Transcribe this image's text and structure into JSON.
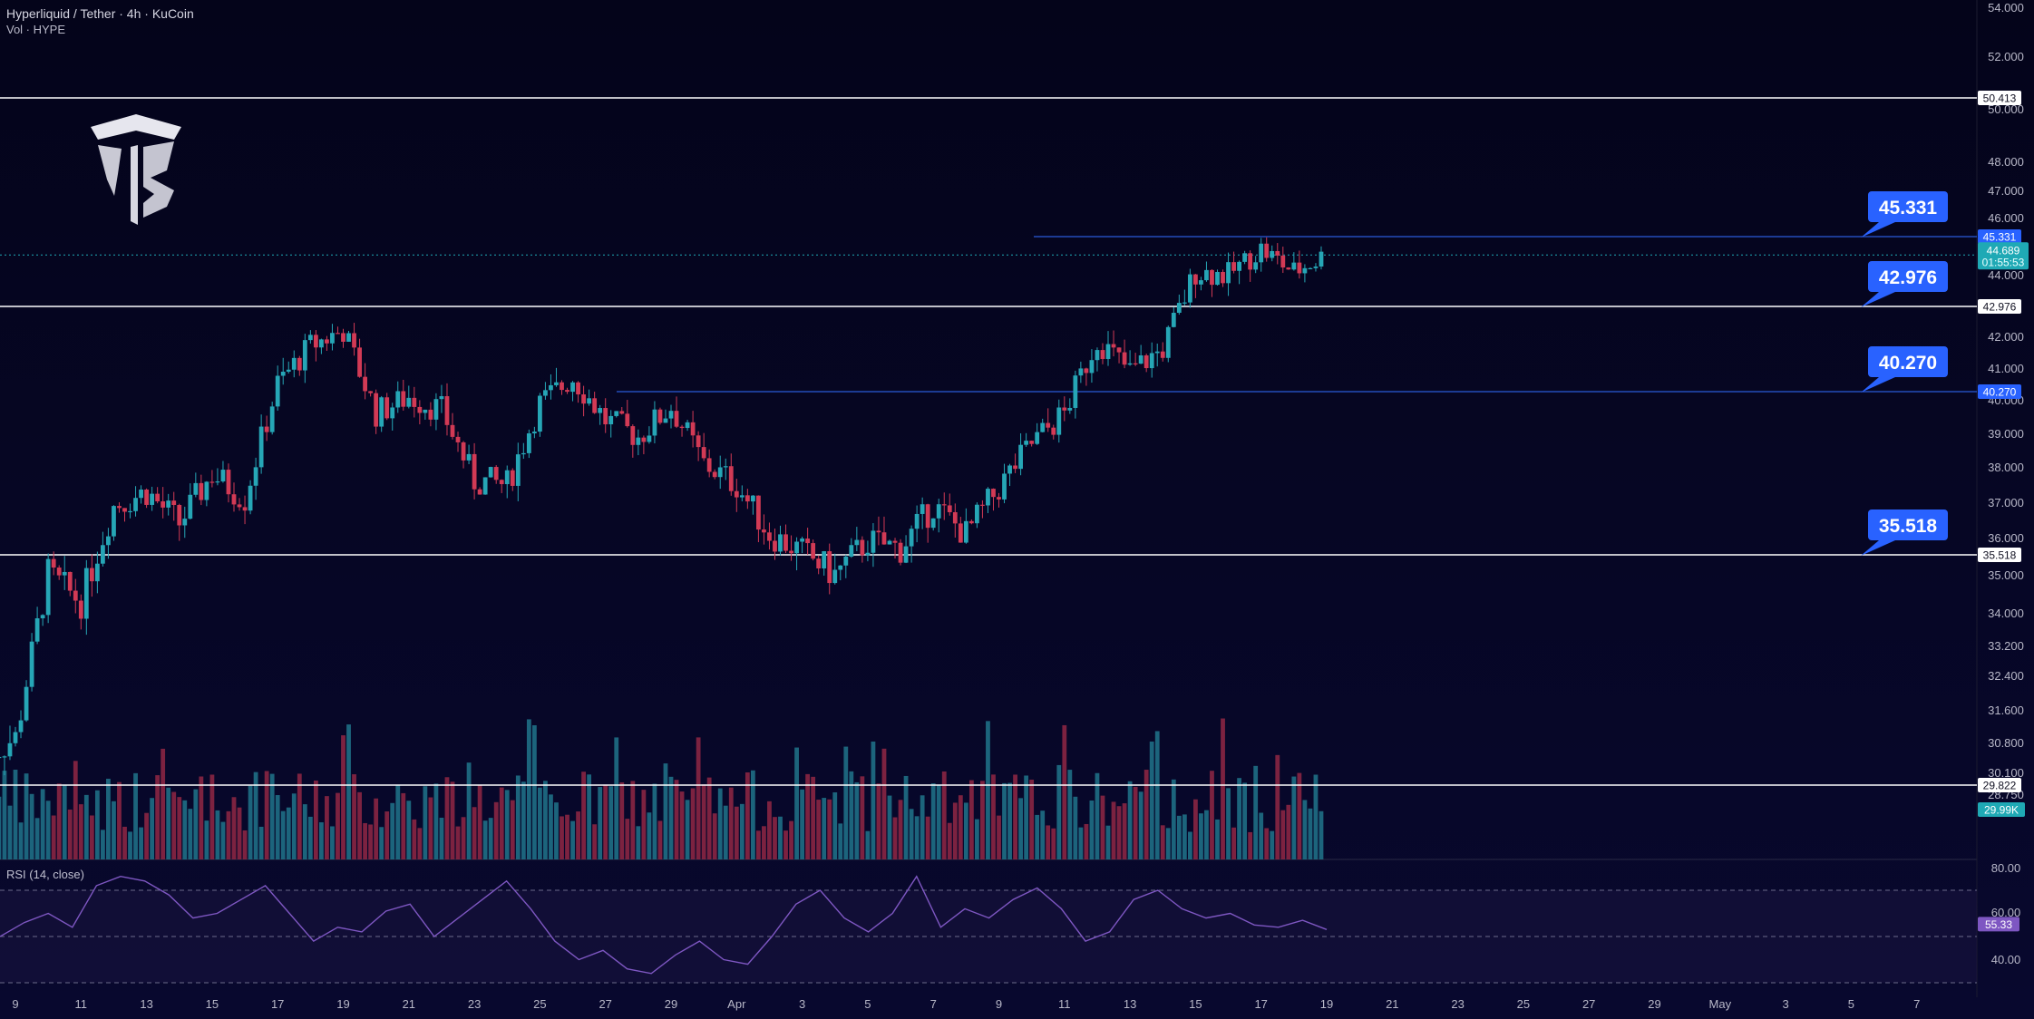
{
  "header": {
    "symbol": "Hyperliquid / Tether · 4h · KuCoin",
    "volume_label": "Vol · HYPE"
  },
  "colors": {
    "background": "#05051a",
    "up": "#26a6b6",
    "down": "#d23a55",
    "level_white": "#ffffff",
    "level_blue": "#2b5bd9",
    "callout_bg": "#2962ff",
    "last_price_bg": "#1fa9b5",
    "rsi_line": "#7e57c2"
  },
  "chart_data": {
    "type": "candlestick",
    "y_axis_ticks": [
      "54.000",
      "52.000",
      "50.000",
      "48.000",
      "47.000",
      "46.000",
      "44.000",
      "42.000",
      "41.000",
      "40.000",
      "39.000",
      "38.000",
      "37.000",
      "36.000",
      "35.000",
      "34.000",
      "33.200",
      "32.400",
      "31.600",
      "30.800",
      "30.100",
      "28.750"
    ],
    "x_axis_ticks": [
      "9",
      "11",
      "13",
      "15",
      "17",
      "19",
      "21",
      "23",
      "25",
      "27",
      "29",
      "Apr",
      "3",
      "5",
      "7",
      "9",
      "11",
      "13",
      "15",
      "17",
      "19",
      "21",
      "23",
      "25",
      "27",
      "29",
      "May",
      "3",
      "5",
      "7"
    ],
    "levels": [
      {
        "value": 50.413,
        "label": "50.413",
        "style": "white"
      },
      {
        "value": 45.331,
        "label": "45.331",
        "style": "blue",
        "callout": "45.331"
      },
      {
        "value": 42.976,
        "label": "42.976",
        "style": "white",
        "callout": "42.976"
      },
      {
        "value": 40.27,
        "label": "40.270",
        "style": "blue",
        "callout": "40.270"
      },
      {
        "value": 35.518,
        "label": "35.518",
        "style": "white",
        "callout": "35.518"
      },
      {
        "value": 29.822,
        "label": "29.822",
        "style": "white"
      }
    ],
    "last_price": {
      "value": 44.689,
      "label": "44.689",
      "countdown": "01:55:53"
    },
    "volume_last": "29.99K",
    "path": [
      [
        "Mar 8",
        30.5
      ],
      [
        "Mar 9",
        30.9
      ],
      [
        "Mar 10",
        35.0
      ],
      [
        "Mar 11",
        34.3
      ],
      [
        "Mar 12",
        36.9
      ],
      [
        "Mar 13",
        37.3
      ],
      [
        "Mar 14",
        36.4
      ],
      [
        "Mar 15",
        37.8
      ],
      [
        "Mar 16",
        37.1
      ],
      [
        "Mar 17",
        40.5
      ],
      [
        "Mar 18",
        41.7
      ],
      [
        "Mar 19",
        42.2
      ],
      [
        "Mar 20",
        39.6
      ],
      [
        "Mar 21",
        40.1
      ],
      [
        "Mar 22",
        39.7
      ],
      [
        "Mar 23",
        37.6
      ],
      [
        "Mar 24",
        37.5
      ],
      [
        "Mar 25",
        39.9
      ],
      [
        "Mar 26",
        40.7
      ],
      [
        "Mar 27",
        39.4
      ],
      [
        "Mar 28",
        38.9
      ],
      [
        "Mar 29",
        39.8
      ],
      [
        "Mar 30",
        38.1
      ],
      [
        "Mar 31",
        37.5
      ],
      [
        "Apr 1",
        36.1
      ],
      [
        "Apr 2",
        35.6
      ],
      [
        "Apr 3",
        35.0
      ],
      [
        "Apr 4",
        35.9
      ],
      [
        "Apr 5",
        35.7
      ],
      [
        "Apr 6",
        36.9
      ],
      [
        "Apr 7",
        36.1
      ],
      [
        "Apr 8",
        37.4
      ],
      [
        "Apr 9",
        38.7
      ],
      [
        "Apr 10",
        39.6
      ],
      [
        "Apr 11",
        41.9
      ],
      [
        "Apr 12",
        40.9
      ],
      [
        "Apr 13",
        41.6
      ],
      [
        "Apr 14",
        44.1
      ],
      [
        "Apr 15",
        44.0
      ],
      [
        "Apr 16",
        44.9
      ],
      [
        "Apr 17",
        44.1
      ],
      [
        "Apr 18",
        44.7
      ]
    ],
    "rsi": {
      "label": "RSI (14, close)",
      "value": "55.33",
      "ticks": [
        "80.00",
        "60.00",
        "40.00"
      ],
      "bands": [
        70,
        50,
        30
      ],
      "points": [
        50,
        56,
        60,
        54,
        72,
        76,
        74,
        68,
        58,
        60,
        66,
        72,
        60,
        48,
        54,
        52,
        61,
        64,
        50,
        58,
        66,
        74,
        62,
        48,
        40,
        44,
        36,
        34,
        42,
        48,
        40,
        38,
        50,
        64,
        70,
        58,
        52,
        60,
        76,
        54,
        62,
        58,
        66,
        71,
        62,
        48,
        52,
        66,
        70,
        62,
        58,
        60,
        55,
        54,
        57,
        53
      ]
    }
  }
}
